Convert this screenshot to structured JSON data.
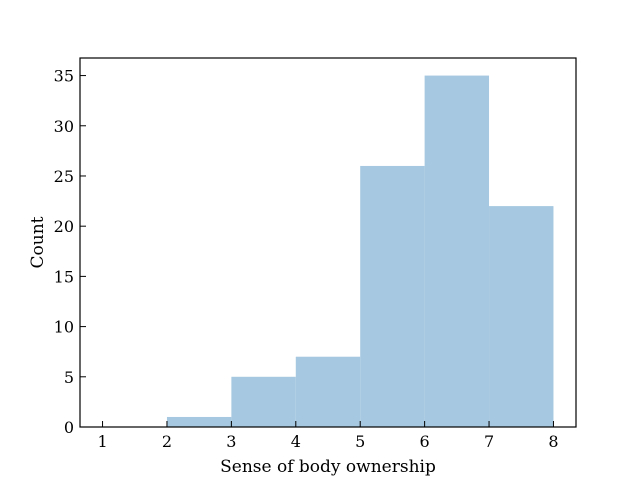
{
  "chart_data": {
    "type": "bar",
    "subtype": "histogram",
    "title": "",
    "xlabel": "Sense of body ownership",
    "ylabel": "Count",
    "xlim": [
      0.65,
      8.35
    ],
    "ylim": [
      0,
      36.75
    ],
    "x_ticks": [
      1,
      2,
      3,
      4,
      5,
      6,
      7,
      8
    ],
    "y_ticks": [
      0,
      5,
      10,
      15,
      20,
      25,
      30,
      35
    ],
    "bins": [
      {
        "start": 2,
        "end": 3,
        "count": 1
      },
      {
        "start": 3,
        "end": 4,
        "count": 5
      },
      {
        "start": 4,
        "end": 5,
        "count": 7
      },
      {
        "start": 5,
        "end": 6,
        "count": 26
      },
      {
        "start": 6,
        "end": 7,
        "count": 35
      },
      {
        "start": 7,
        "end": 8,
        "count": 22
      }
    ],
    "bar_color": "#a6c8e0",
    "tick_direction": "in",
    "grid": false,
    "legend": "none"
  }
}
